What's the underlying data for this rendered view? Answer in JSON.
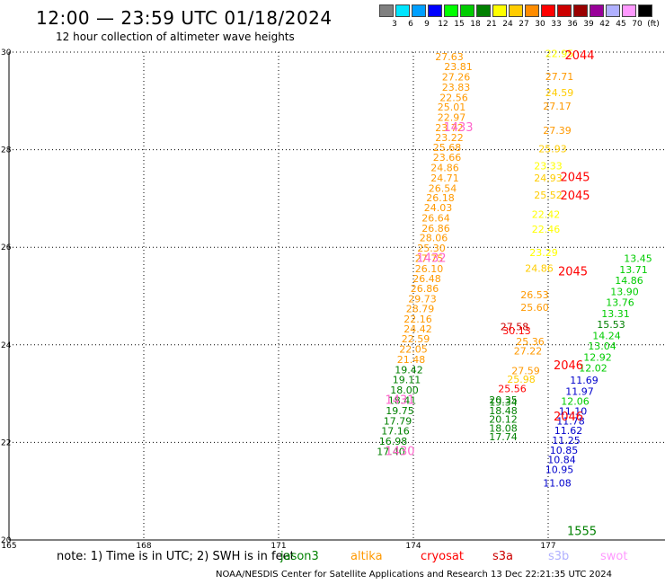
{
  "title": "12:00 — 23:59 UTC 01/18/2024",
  "subtitle": "12 hour collection of altimeter wave heights",
  "legend": {
    "labels": [
      "3",
      "6",
      "9",
      "12",
      "15",
      "18",
      "21",
      "24",
      "27",
      "30",
      "33",
      "36",
      "39",
      "42",
      "45",
      "70",
      "(ft)"
    ],
    "colors": [
      "#808080",
      "#00e5ff",
      "#00a0ff",
      "#0000ff",
      "#00ff00",
      "#00cc00",
      "#008000",
      "#ffff00",
      "#ffcc00",
      "#ff8c00",
      "#ff0000",
      "#cc0000",
      "#990000",
      "#990099",
      "#b0b0ff",
      "#ff99ff",
      "#000000"
    ]
  },
  "note": "note: 1) Time is in UTC; 2) SWH is in feet",
  "satellites": [
    {
      "name": "jason3",
      "color": "#008000"
    },
    {
      "name": "altika",
      "color": "#ff9900"
    },
    {
      "name": "cryosat",
      "color": "#ff0000"
    },
    {
      "name": "s3a",
      "color": "#cc0000"
    },
    {
      "name": "s3b",
      "color": "#b0b0ff"
    },
    {
      "name": "swot",
      "color": "#ff99ff"
    }
  ],
  "footer": "NOAA/NESDIS Center for Satellite Applications and Research    13 Dec 22:21:35 UTC 2024",
  "chart_data": {
    "type": "scatter",
    "xlim": [
      165,
      179.6
    ],
    "ylim": [
      20,
      30
    ],
    "xticks": [
      "165",
      "168",
      "171",
      "174",
      "177"
    ],
    "yticks": [
      "20",
      "22",
      "24",
      "26",
      "28",
      "30"
    ],
    "grid": true,
    "series": [
      {
        "name": "altika",
        "color": "#ff9900",
        "points": [
          [
            174.8,
            29.83,
            "27.63"
          ],
          [
            175.0,
            29.63,
            "23.81"
          ],
          [
            174.95,
            29.42,
            "27.26"
          ],
          [
            174.95,
            29.21,
            "23.83"
          ],
          [
            174.9,
            29.0,
            "22.56"
          ],
          [
            174.85,
            28.8,
            "25.01"
          ],
          [
            174.85,
            28.59,
            "22.97"
          ],
          [
            174.8,
            28.38,
            "23.72"
          ],
          [
            174.8,
            28.18,
            "23.22"
          ],
          [
            174.75,
            27.97,
            "25.68"
          ],
          [
            174.75,
            27.77,
            "23.66"
          ],
          [
            174.7,
            27.56,
            "24.86"
          ],
          [
            174.7,
            27.35,
            "24.71"
          ],
          [
            174.65,
            27.14,
            "26.54"
          ],
          [
            174.6,
            26.94,
            "26.18"
          ],
          [
            174.55,
            26.74,
            "24.03"
          ],
          [
            174.5,
            26.53,
            "26.64"
          ],
          [
            174.5,
            26.32,
            "26.86"
          ],
          [
            174.45,
            26.12,
            "28.06"
          ],
          [
            174.4,
            25.91,
            "25.30"
          ],
          [
            174.35,
            25.7,
            "27.75"
          ],
          [
            174.35,
            25.49,
            "26.10"
          ],
          [
            174.3,
            25.29,
            "26.48"
          ],
          [
            174.25,
            25.08,
            "26.86"
          ],
          [
            174.2,
            24.87,
            "29.73"
          ],
          [
            174.15,
            24.67,
            "28.79"
          ],
          [
            174.1,
            24.46,
            "22.16"
          ],
          [
            174.1,
            24.25,
            "24.42"
          ],
          [
            174.05,
            24.05,
            "22.59"
          ],
          [
            174.0,
            23.84,
            "22.05"
          ],
          [
            173.95,
            23.63,
            "21.48"
          ]
        ]
      },
      {
        "name": "jason3",
        "color": "#008000",
        "points": [
          [
            173.9,
            23.42,
            "19.42"
          ],
          [
            173.85,
            23.21,
            "19.11"
          ],
          [
            173.8,
            23.0,
            "18.00"
          ],
          [
            173.75,
            22.79,
            "18.41"
          ],
          [
            173.7,
            22.58,
            "19.75"
          ],
          [
            173.65,
            22.37,
            "17.79"
          ],
          [
            173.6,
            22.16,
            "17.16"
          ],
          [
            173.55,
            21.95,
            "16.98"
          ],
          [
            173.5,
            21.74,
            "17.40"
          ],
          [
            176.0,
            22.8,
            "20.35"
          ],
          [
            176.0,
            22.75,
            "19.34"
          ],
          [
            176.0,
            22.58,
            "18.48"
          ],
          [
            176.0,
            22.4,
            "20.12"
          ],
          [
            176.0,
            22.22,
            "18.08"
          ],
          [
            176.0,
            22.04,
            "17.74"
          ]
        ]
      },
      {
        "name": "cryosat",
        "color": "#ff0000",
        "points": [
          [
            176.2,
            23.03,
            "25.56"
          ],
          [
            176.3,
            24.22,
            "30.13"
          ]
        ]
      },
      {
        "name": "s3a",
        "color": "#cc0000",
        "points": [
          [
            176.25,
            24.3,
            "27.58"
          ]
        ]
      }
    ],
    "time_labels": [
      {
        "x": 175.0,
        "y": 28.38,
        "text": "1433",
        "color": "#ff66cc"
      },
      {
        "x": 174.4,
        "y": 25.7,
        "text": "1432",
        "color": "#ff66cc"
      },
      {
        "x": 173.7,
        "y": 22.79,
        "text": "1431",
        "color": "#ff66cc"
      },
      {
        "x": 173.7,
        "y": 21.74,
        "text": "1430",
        "color": "#ff66cc"
      },
      {
        "x": 177.7,
        "y": 29.85,
        "text": "2044",
        "color": "#ff0000"
      },
      {
        "x": 177.6,
        "y": 27.36,
        "text": "2045",
        "color": "#ff0000"
      },
      {
        "x": 177.6,
        "y": 26.98,
        "text": "2045",
        "color": "#ff0000"
      },
      {
        "x": 177.55,
        "y": 25.42,
        "text": "2045",
        "color": "#ff0000"
      },
      {
        "x": 177.45,
        "y": 23.5,
        "text": "2046",
        "color": "#ff0000"
      },
      {
        "x": 177.45,
        "y": 22.45,
        "text": "2046",
        "color": "#ff0000"
      },
      {
        "x": 177.75,
        "y": 20.1,
        "text": "1555",
        "color": "#008000"
      }
    ],
    "other_values": [
      {
        "x": 177.25,
        "y": 29.9,
        "text": "22.95",
        "color": "#ffff00"
      },
      {
        "x": 177.25,
        "y": 29.43,
        "text": "27.71",
        "color": "#ff9900"
      },
      {
        "x": 177.25,
        "y": 29.1,
        "text": "24.59",
        "color": "#ffcc00"
      },
      {
        "x": 177.2,
        "y": 28.82,
        "text": "27.17",
        "color": "#ff9900"
      },
      {
        "x": 177.2,
        "y": 28.32,
        "text": "27.39",
        "color": "#ff9900"
      },
      {
        "x": 177.1,
        "y": 27.95,
        "text": "25.93",
        "color": "#ffcc00"
      },
      {
        "x": 177.0,
        "y": 27.6,
        "text": "23.33",
        "color": "#ffff00"
      },
      {
        "x": 177.0,
        "y": 27.35,
        "text": "24.93",
        "color": "#ffcc00"
      },
      {
        "x": 177.0,
        "y": 27.0,
        "text": "25.52",
        "color": "#ffcc00"
      },
      {
        "x": 176.95,
        "y": 26.6,
        "text": "22.42",
        "color": "#ffff00"
      },
      {
        "x": 176.95,
        "y": 26.3,
        "text": "22.46",
        "color": "#ffff00"
      },
      {
        "x": 176.9,
        "y": 25.82,
        "text": "23.29",
        "color": "#ffff00"
      },
      {
        "x": 176.8,
        "y": 25.5,
        "text": "24.86",
        "color": "#ffcc00"
      },
      {
        "x": 176.7,
        "y": 24.95,
        "text": "26.53",
        "color": "#ff9900"
      },
      {
        "x": 176.7,
        "y": 24.7,
        "text": "25.60",
        "color": "#ff9900"
      },
      {
        "x": 176.6,
        "y": 24.0,
        "text": "25.36",
        "color": "#ff9900"
      },
      {
        "x": 176.55,
        "y": 23.8,
        "text": "27.22",
        "color": "#ff9900"
      },
      {
        "x": 176.5,
        "y": 23.4,
        "text": "27.59",
        "color": "#ff9900"
      },
      {
        "x": 176.4,
        "y": 23.22,
        "text": "25.98",
        "color": "#ffcc00"
      },
      {
        "x": 177.8,
        "y": 23.2,
        "text": "11.69",
        "color": "#0000cc"
      },
      {
        "x": 177.7,
        "y": 22.97,
        "text": "11.97",
        "color": "#0000cc"
      },
      {
        "x": 177.6,
        "y": 22.77,
        "text": "12.06",
        "color": "#00cc00"
      },
      {
        "x": 177.55,
        "y": 22.57,
        "text": "11.10",
        "color": "#0000cc"
      },
      {
        "x": 177.5,
        "y": 22.37,
        "text": "11.78",
        "color": "#0000cc"
      },
      {
        "x": 177.45,
        "y": 22.17,
        "text": "11.62",
        "color": "#0000cc"
      },
      {
        "x": 177.4,
        "y": 21.97,
        "text": "11.25",
        "color": "#0000cc"
      },
      {
        "x": 177.35,
        "y": 21.77,
        "text": "10.85",
        "color": "#0000cc"
      },
      {
        "x": 177.3,
        "y": 21.57,
        "text": "10.84",
        "color": "#0000cc"
      },
      {
        "x": 177.25,
        "y": 21.37,
        "text": "10.95",
        "color": "#0000cc"
      },
      {
        "x": 177.2,
        "y": 21.1,
        "text": "11.08",
        "color": "#0000cc"
      },
      {
        "x": 178.0,
        "y": 23.45,
        "text": "12.02",
        "color": "#00cc00"
      },
      {
        "x": 178.1,
        "y": 23.67,
        "text": "12.92",
        "color": "#00cc00"
      },
      {
        "x": 178.2,
        "y": 23.9,
        "text": "13.04",
        "color": "#00cc00"
      },
      {
        "x": 178.3,
        "y": 24.12,
        "text": "14.24",
        "color": "#00cc00"
      },
      {
        "x": 178.4,
        "y": 24.35,
        "text": "15.53",
        "color": "#008000"
      },
      {
        "x": 178.5,
        "y": 24.57,
        "text": "13.31",
        "color": "#00cc00"
      },
      {
        "x": 178.6,
        "y": 24.8,
        "text": "13.76",
        "color": "#00cc00"
      },
      {
        "x": 178.7,
        "y": 25.02,
        "text": "13.90",
        "color": "#00cc00"
      },
      {
        "x": 178.8,
        "y": 25.25,
        "text": "14.86",
        "color": "#00cc00"
      },
      {
        "x": 178.9,
        "y": 25.47,
        "text": "13.71",
        "color": "#00cc00"
      },
      {
        "x": 179.0,
        "y": 25.7,
        "text": "13.45",
        "color": "#00cc00"
      }
    ]
  }
}
